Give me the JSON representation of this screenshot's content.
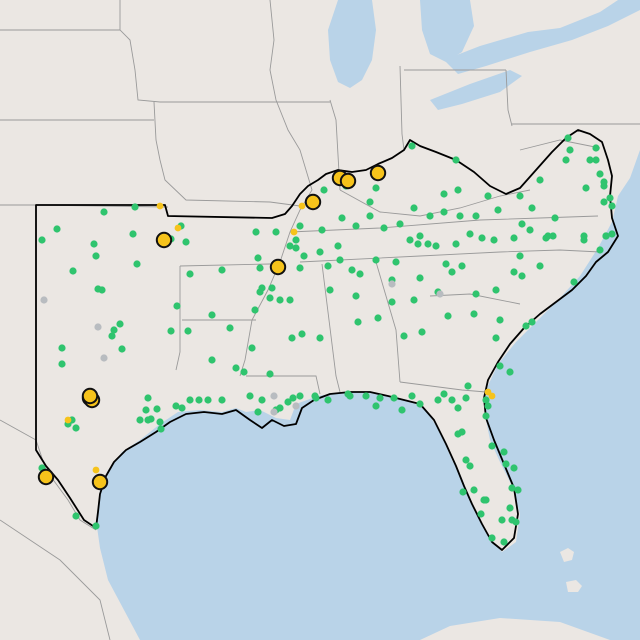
{
  "map": {
    "colors": {
      "water": "#b9d3e8",
      "land": "#ebe7e3",
      "state_border": "#9a9a9a",
      "region_outline": "#000000",
      "marker_green": "#2fc46e",
      "marker_gray": "#b8bcc0",
      "marker_yellow": "#f6c31b",
      "marker_yellow_outline": "#111111"
    },
    "layers": [
      "land-basemap-layer",
      "state-boundaries-layer",
      "region-outline-layer",
      "green-site-markers",
      "gray-site-markers",
      "small-yellow-site-markers",
      "large-yellow-site-markers"
    ],
    "marker_counts": {
      "green": 230,
      "gray": 8,
      "small_yellow": 8,
      "large_yellow": 11
    }
  }
}
